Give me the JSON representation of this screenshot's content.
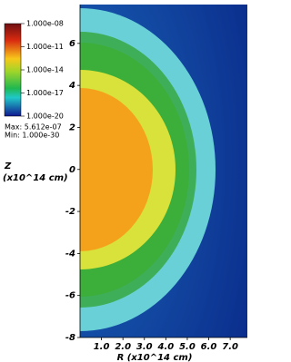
{
  "chart_data": {
    "type": "heatmap",
    "ylabel": "Z",
    "ylabel_unit": "(x10^14 cm)",
    "xlabel": "R (x10^14 cm)",
    "xlim": [
      0,
      7.8
    ],
    "xticks": [
      {
        "value": 1,
        "label": "1.0"
      },
      {
        "value": 2,
        "label": "2.0"
      },
      {
        "value": 3,
        "label": "3.0"
      },
      {
        "value": 4,
        "label": "4.0"
      },
      {
        "value": 5,
        "label": "5.0"
      },
      {
        "value": 6,
        "label": "6.0"
      },
      {
        "value": 7,
        "label": "7.0"
      }
    ],
    "ylim": [
      -8,
      7.85
    ],
    "yticks": [
      -8,
      -6,
      -4,
      -2,
      0,
      2,
      4,
      6
    ],
    "colorbar": {
      "log": true,
      "lim": [
        1e-20,
        1e-08
      ],
      "ticks": [
        {
          "value": 1e-08,
          "label": "1.000e-08"
        },
        {
          "value": 1e-11,
          "label": "1.000e-11"
        },
        {
          "value": 1e-14,
          "label": "1.000e-14"
        },
        {
          "value": 1e-17,
          "label": "1.000e-17"
        },
        {
          "value": 1e-20,
          "label": "1.000e-20"
        }
      ],
      "max_label": "Max: 5.612e-07",
      "min_label": "Min: 1.000e-30"
    }
  }
}
